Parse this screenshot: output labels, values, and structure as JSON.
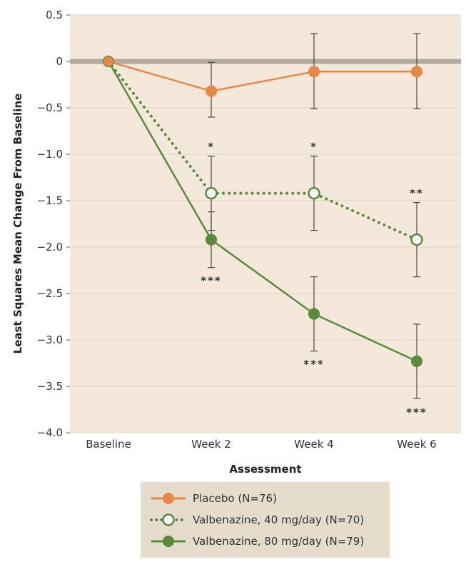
{
  "chart_data": {
    "type": "line",
    "xlabel": "Assessment",
    "ylabel": "Least Squares Mean Change From Baseline",
    "categories": [
      "Baseline",
      "Week 2",
      "Week 4",
      "Week 6"
    ],
    "ylim": [
      -4.0,
      0.5
    ],
    "yticks": [
      0.5,
      0,
      -0.5,
      -1.0,
      -1.5,
      -2.0,
      -2.5,
      -3.0,
      -3.5,
      -4.0
    ],
    "ytick_labels": [
      "0.5",
      "0",
      "−0.5",
      "−1.0",
      "−1.5",
      "−2.0",
      "−2.5",
      "−3.0",
      "−3.5",
      "−4.0"
    ],
    "grid": "horizontal",
    "reference_line": 0,
    "legend_position": "bottom",
    "series": [
      {
        "name": "Placebo (N=76)",
        "color": "#e8874a",
        "marker": "filled-circle",
        "line_style": "solid",
        "values": [
          0,
          -0.32,
          -0.11,
          -0.11
        ],
        "error_low": [
          null,
          -0.6,
          -0.51,
          -0.51
        ],
        "error_high": [
          null,
          -0.01,
          0.3,
          0.3
        ],
        "significance": [
          "",
          "",
          "",
          ""
        ]
      },
      {
        "name": "Valbenazine, 40 mg/day (N=70)",
        "color": "#5a8a3c",
        "marker": "open-circle",
        "line_style": "dotted",
        "values": [
          0,
          -1.42,
          -1.42,
          -1.92
        ],
        "error_low": [
          null,
          -1.82,
          -1.82,
          -2.32
        ],
        "error_high": [
          null,
          -1.02,
          -1.02,
          -1.52
        ],
        "significance": [
          "",
          "*",
          "*",
          "**"
        ]
      },
      {
        "name": "Valbenazine, 80 mg/day (N=79)",
        "color": "#5a8a3c",
        "marker": "filled-circle",
        "line_style": "solid",
        "values": [
          0,
          -1.92,
          -2.72,
          -3.23
        ],
        "error_low": [
          null,
          -2.22,
          -3.12,
          -3.63
        ],
        "error_high": [
          null,
          -1.62,
          -2.32,
          -2.83
        ],
        "significance": [
          "",
          "***",
          "***",
          "***"
        ]
      }
    ]
  }
}
